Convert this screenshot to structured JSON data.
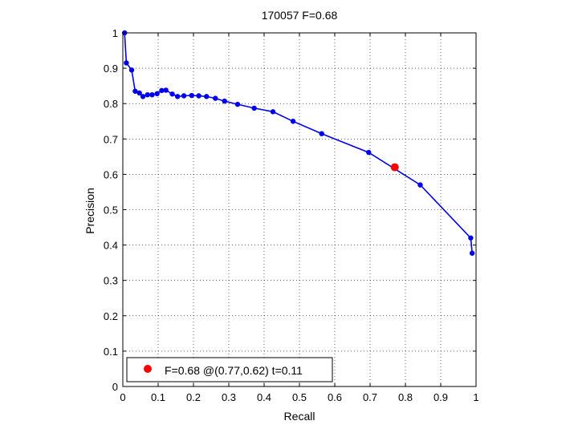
{
  "chart_data": {
    "type": "line",
    "title": "170057 F=0.68",
    "xlabel": "Recall",
    "ylabel": "Precision",
    "xlim": [
      0,
      1
    ],
    "ylim": [
      0,
      1
    ],
    "xticks": [
      "0",
      "0.1",
      "0.2",
      "0.3",
      "0.4",
      "0.5",
      "0.6",
      "0.7",
      "0.8",
      "0.9",
      "1"
    ],
    "yticks": [
      "0",
      "0.1",
      "0.2",
      "0.3",
      "0.4",
      "0.5",
      "0.6",
      "0.7",
      "0.8",
      "0.9",
      "1"
    ],
    "grid": true,
    "legend_position": "bottom-left",
    "series": [
      {
        "color": "#0000ee",
        "x": [
          0.005,
          0.01,
          0.025,
          0.035,
          0.047,
          0.057,
          0.07,
          0.083,
          0.097,
          0.11,
          0.122,
          0.14,
          0.155,
          0.173,
          0.195,
          0.215,
          0.237,
          0.262,
          0.288,
          0.325,
          0.372,
          0.425,
          0.482,
          0.563,
          0.696,
          0.842,
          0.985,
          0.989
        ],
        "y": [
          1.0,
          0.915,
          0.895,
          0.835,
          0.83,
          0.82,
          0.825,
          0.825,
          0.828,
          0.837,
          0.838,
          0.827,
          0.82,
          0.822,
          0.823,
          0.822,
          0.82,
          0.815,
          0.807,
          0.798,
          0.787,
          0.777,
          0.75,
          0.715,
          0.662,
          0.57,
          0.42,
          0.377
        ]
      }
    ],
    "best_point": {
      "x": 0.77,
      "y": 0.62,
      "color": "#ff0000",
      "label": "F=0.68 @(0.77,0.62) t=0.11"
    }
  }
}
